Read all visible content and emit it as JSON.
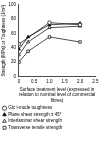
{
  "chart_data": {
    "type": "line",
    "x_label": "Surface treatment level (expressed in relation to nominal level of commercial fibres)",
    "y_label": "Strength (MPa) or Toughness (J/m²)",
    "xlim": [
      0,
      2.5
    ],
    "xticks": [
      0,
      0.5,
      {
        "value": 1,
        "label": "1.0"
      },
      1.5,
      {
        "value": 2,
        "label": "2.0"
      },
      2.5
    ],
    "ylim": [
      0,
      100
    ],
    "yticks": [
      0,
      20,
      40,
      60,
      80,
      100
    ],
    "grid": false,
    "legend": "bottom",
    "series": [
      {
        "name": "GIc i-mode toughness",
        "color": "#000000",
        "marker": "open-circle",
        "x": [
          0,
          1,
          2
        ],
        "values": [
          45,
          75,
          72
        ]
      },
      {
        "name": "Plane shear strength ± 45°",
        "color": "#000000",
        "marker": "filled-triangle",
        "x": [
          0,
          0.3,
          1,
          2
        ],
        "values": [
          38,
          55,
          72,
          74
        ]
      },
      {
        "name": "Interlaminar shear strength",
        "color": "#000000",
        "marker": "open-triangle",
        "x": [
          0,
          0.3,
          1,
          2
        ],
        "values": [
          30,
          48,
          68,
          70
        ]
      },
      {
        "name": "Transverse tensile strength",
        "color": "#000000",
        "marker": "open-square",
        "x": [
          0,
          0.3,
          1,
          2
        ],
        "values": [
          20,
          35,
          55,
          48
        ]
      }
    ]
  }
}
